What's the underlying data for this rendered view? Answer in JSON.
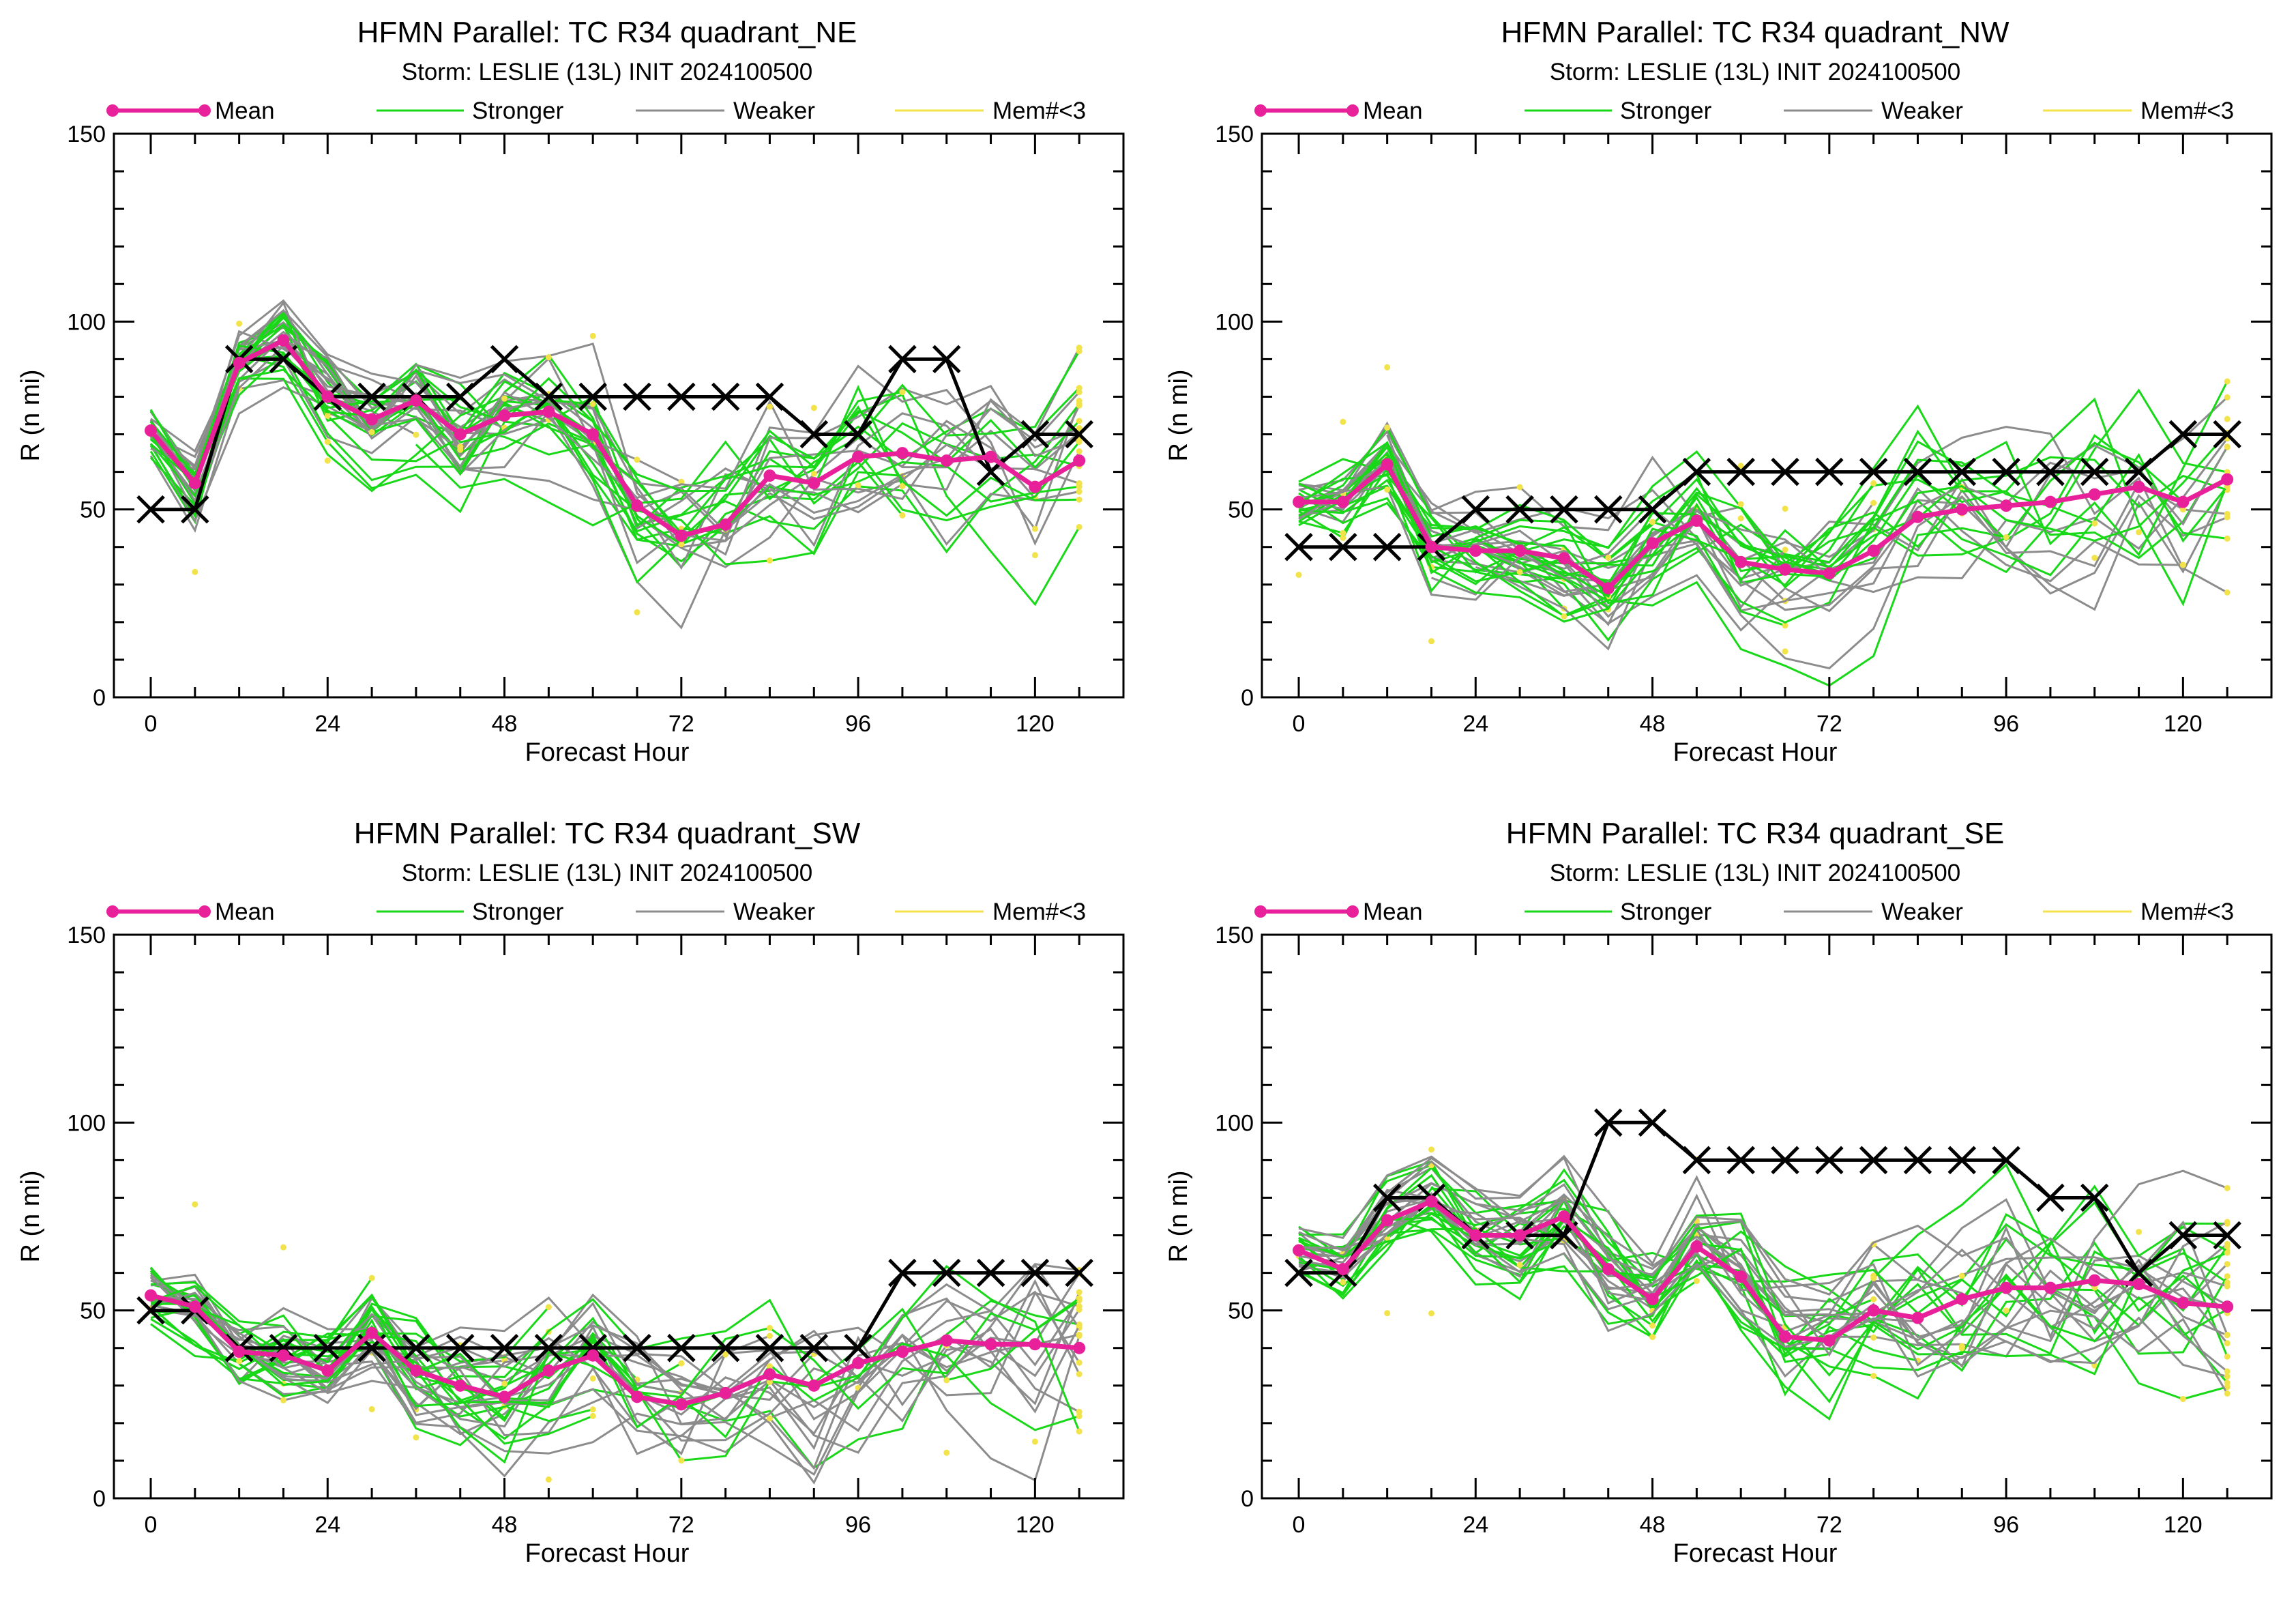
{
  "colors": {
    "mean": "#e8219b",
    "stronger": "#18d818",
    "weaker": "#8c8c8c",
    "few": "#f2e34a",
    "best_track": "#000000"
  },
  "legend": {
    "mean": "Mean",
    "stronger": "Stronger",
    "weaker": "Weaker",
    "few": "Mem#<3"
  },
  "chart_data": [
    {
      "type": "line",
      "title": "HFMN Parallel: TC  R34 quadrant_NE",
      "subtitle": "Storm: LESLIE (13L) INIT 2024100500",
      "xlabel": "Forecast Hour",
      "ylabel": "R (n mi)",
      "xlim": [
        -5,
        132
      ],
      "ylim": [
        0,
        150
      ],
      "xticks": [
        0,
        24,
        48,
        72,
        96,
        120
      ],
      "yticks": [
        0,
        50,
        100,
        150
      ],
      "x": [
        0,
        6,
        12,
        18,
        24,
        30,
        36,
        42,
        48,
        54,
        60,
        66,
        72,
        78,
        84,
        90,
        96,
        102,
        108,
        114,
        120,
        126
      ],
      "series": [
        {
          "name": "Mean",
          "values": [
            71,
            57,
            89,
            95,
            80,
            74,
            79,
            70,
            75,
            76,
            70,
            51,
            43,
            46,
            59,
            57,
            64,
            65,
            63,
            64,
            56,
            63
          ]
        },
        {
          "values": [
            50,
            50,
            90,
            90,
            80,
            80,
            80,
            80,
            90,
            80,
            80,
            80,
            80,
            80,
            80,
            70,
            70,
            90,
            90,
            60,
            70,
            70
          ]
        }
      ]
    },
    {
      "type": "line",
      "title": "HFMN Parallel: TC  R34 quadrant_NW",
      "subtitle": "Storm: LESLIE (13L) INIT 2024100500",
      "xlabel": "Forecast Hour",
      "ylabel": "R (n mi)",
      "xlim": [
        -5,
        132
      ],
      "ylim": [
        0,
        150
      ],
      "xticks": [
        0,
        24,
        48,
        72,
        96,
        120
      ],
      "yticks": [
        0,
        50,
        100,
        150
      ],
      "x": [
        0,
        6,
        12,
        18,
        24,
        30,
        36,
        42,
        48,
        54,
        60,
        66,
        72,
        78,
        84,
        90,
        96,
        102,
        108,
        114,
        120,
        126
      ],
      "series": [
        {
          "name": "Mean",
          "values": [
            52,
            52,
            62,
            40,
            39,
            39,
            37,
            29,
            41,
            47,
            36,
            34,
            33,
            39,
            48,
            50,
            51,
            52,
            54,
            56,
            52,
            58
          ]
        },
        {
          "values": [
            40,
            40,
            40,
            40,
            50,
            50,
            50,
            50,
            50,
            60,
            60,
            60,
            60,
            60,
            60,
            60,
            60,
            60,
            60,
            60,
            70,
            70
          ]
        }
      ]
    },
    {
      "type": "line",
      "title": "HFMN Parallel: TC  R34 quadrant_SW",
      "subtitle": "Storm: LESLIE (13L) INIT 2024100500",
      "xlabel": "Forecast Hour",
      "ylabel": "R (n mi)",
      "xlim": [
        -5,
        132
      ],
      "ylim": [
        0,
        150
      ],
      "xticks": [
        0,
        24,
        48,
        72,
        96,
        120
      ],
      "yticks": [
        0,
        50,
        100,
        150
      ],
      "x": [
        0,
        6,
        12,
        18,
        24,
        30,
        36,
        42,
        48,
        54,
        60,
        66,
        72,
        78,
        84,
        90,
        96,
        102,
        108,
        114,
        120,
        126
      ],
      "series": [
        {
          "name": "Mean",
          "values": [
            54,
            51,
            39,
            38,
            34,
            44,
            34,
            30,
            27,
            34,
            38,
            27,
            25,
            28,
            33,
            30,
            36,
            39,
            42,
            41,
            41,
            40
          ]
        },
        {
          "values": [
            50,
            50,
            40,
            40,
            40,
            40,
            40,
            40,
            40,
            40,
            40,
            40,
            40,
            40,
            40,
            40,
            40,
            60,
            60,
            60,
            60,
            60
          ]
        }
      ]
    },
    {
      "type": "line",
      "title": "HFMN Parallel: TC  R34 quadrant_SE",
      "subtitle": "Storm: LESLIE (13L) INIT 2024100500",
      "xlabel": "Forecast Hour",
      "ylabel": "R (n mi)",
      "xlim": [
        -5,
        132
      ],
      "ylim": [
        0,
        150
      ],
      "xticks": [
        0,
        24,
        48,
        72,
        96,
        120
      ],
      "yticks": [
        0,
        50,
        100,
        150
      ],
      "x": [
        0,
        6,
        12,
        18,
        24,
        30,
        36,
        42,
        48,
        54,
        60,
        66,
        72,
        78,
        84,
        90,
        96,
        102,
        108,
        114,
        120,
        126
      ],
      "series": [
        {
          "name": "Mean",
          "values": [
            66,
            61,
            74,
            79,
            70,
            70,
            75,
            61,
            53,
            67,
            59,
            43,
            42,
            50,
            48,
            53,
            56,
            56,
            58,
            57,
            52,
            51
          ]
        },
        {
          "values": [
            60,
            60,
            80,
            80,
            70,
            70,
            70,
            100,
            100,
            90,
            90,
            90,
            90,
            90,
            90,
            90,
            90,
            80,
            80,
            60,
            70,
            70
          ]
        }
      ]
    }
  ]
}
